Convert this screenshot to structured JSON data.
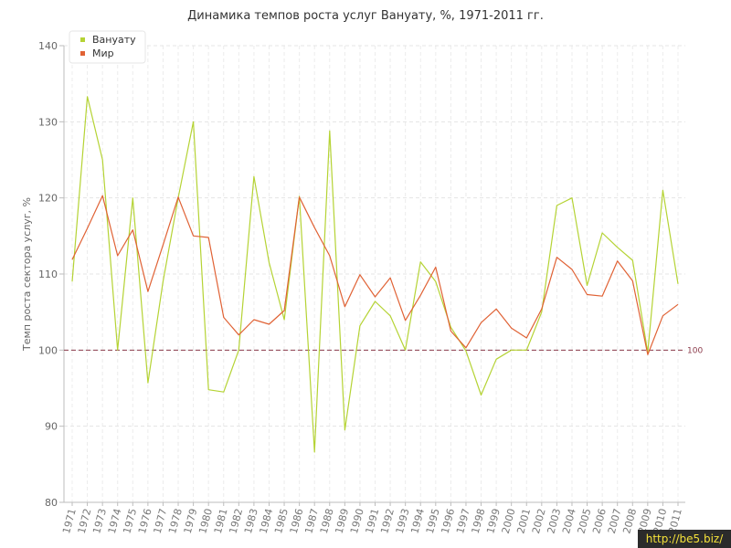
{
  "chart_data": {
    "type": "line",
    "title": "Динамика темпов роста услуг Вануату, %, 1971-2011 гг.",
    "xlabel": "",
    "ylabel": "Темп роста сектора услуг, %",
    "ylim": [
      80,
      140
    ],
    "yticks": [
      80,
      90,
      100,
      110,
      120,
      130,
      140
    ],
    "categories": [
      "1971",
      "1972",
      "1973",
      "1974",
      "1975",
      "1976",
      "1977",
      "1978",
      "1979",
      "1980",
      "1981",
      "1982",
      "1983",
      "1984",
      "1985",
      "1986",
      "1987",
      "1988",
      "1989",
      "1990",
      "1991",
      "1992",
      "1993",
      "1994",
      "1995",
      "1996",
      "1997",
      "1998",
      "1999",
      "2000",
      "2001",
      "2002",
      "2003",
      "2004",
      "2005",
      "2006",
      "2007",
      "2008",
      "2009",
      "2010",
      "2011"
    ],
    "series": [
      {
        "name": "Вануату",
        "color": "#b5d334",
        "values": [
          109,
          133.3,
          125,
          100,
          120,
          95.7,
          109,
          120,
          130,
          94.8,
          94.5,
          100,
          122.8,
          111.5,
          104,
          120.2,
          86.6,
          128.8,
          89.5,
          103.2,
          106.4,
          104.5,
          100,
          111.6,
          109,
          103,
          99.9,
          94.1,
          98.8,
          100,
          100,
          105,
          119,
          120,
          108.5,
          115.4,
          113.5,
          111.8,
          99.7,
          121,
          108.7
        ]
      },
      {
        "name": "Мир",
        "color": "#e06235",
        "values": [
          111.9,
          116,
          120.3,
          112.4,
          115.8,
          107.7,
          113.8,
          120.1,
          115,
          114.8,
          104.3,
          102,
          104,
          103.4,
          105.2,
          120.1,
          116.1,
          112.4,
          105.7,
          109.9,
          107,
          109.5,
          103.9,
          107.2,
          110.9,
          102.5,
          100.3,
          103.6,
          105.4,
          102.9,
          101.6,
          105.4,
          112.2,
          110.6,
          107.3,
          107.1,
          111.7,
          109.1,
          99.4,
          104.5,
          106
        ]
      }
    ],
    "reference_line": {
      "value": 100,
      "label": "100",
      "color": "#8b3a4a"
    },
    "grid": true,
    "legend_position": "top-left"
  },
  "watermark": "http://be5.biz/"
}
